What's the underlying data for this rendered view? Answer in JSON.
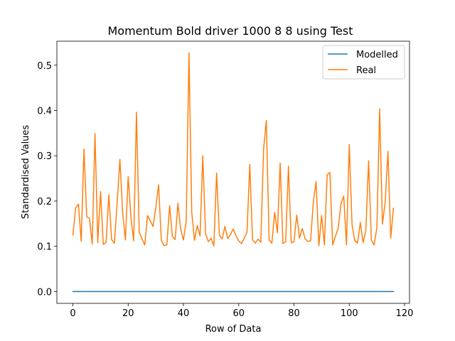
{
  "chart_data": {
    "type": "line",
    "title": "Momentum Bold driver 1000 8 8 using Test",
    "xlabel": "Row of Data",
    "ylabel": "Standardised Values",
    "xlim": [
      -5.8,
      121.8
    ],
    "ylim": [
      -0.026,
      0.553
    ],
    "xticks": [
      0,
      20,
      40,
      60,
      80,
      100,
      120
    ],
    "yticks": [
      0.0,
      0.1,
      0.2,
      0.3,
      0.4,
      0.5
    ],
    "xtick_labels": [
      "0",
      "20",
      "40",
      "60",
      "80",
      "100",
      "120"
    ],
    "ytick_labels": [
      "0.0",
      "0.1",
      "0.2",
      "0.3",
      "0.4",
      "0.5"
    ],
    "legend": {
      "position": "top-right"
    },
    "grid": false,
    "series": [
      {
        "name": "Modelled",
        "color": "#1f77b4",
        "x": [
          0,
          116
        ],
        "values": [
          0.0,
          0.0
        ]
      },
      {
        "name": "Real",
        "color": "#ff7f0e",
        "x": [
          0,
          1,
          2,
          3,
          4,
          5,
          6,
          7,
          8,
          9,
          10,
          11,
          12,
          13,
          14,
          15,
          16,
          17,
          18,
          19,
          20,
          21,
          22,
          23,
          24,
          25,
          26,
          27,
          28,
          29,
          30,
          31,
          32,
          33,
          34,
          35,
          36,
          37,
          38,
          39,
          40,
          41,
          42,
          43,
          44,
          45,
          46,
          47,
          48,
          49,
          50,
          51,
          52,
          53,
          54,
          55,
          56,
          57,
          58,
          59,
          60,
          61,
          62,
          63,
          64,
          65,
          66,
          67,
          68,
          69,
          70,
          71,
          72,
          73,
          74,
          75,
          76,
          77,
          78,
          79,
          80,
          81,
          82,
          83,
          84,
          85,
          86,
          87,
          88,
          89,
          90,
          91,
          92,
          93,
          94,
          95,
          96,
          97,
          98,
          99,
          100,
          101,
          102,
          103,
          104,
          105,
          106,
          107,
          108,
          109,
          110,
          111,
          112,
          113,
          114,
          115,
          116
        ],
        "values": [
          0.125,
          0.185,
          0.193,
          0.111,
          0.315,
          0.165,
          0.162,
          0.105,
          0.349,
          0.108,
          0.221,
          0.104,
          0.108,
          0.214,
          0.115,
          0.107,
          0.195,
          0.292,
          0.175,
          0.114,
          0.254,
          0.163,
          0.112,
          0.396,
          0.131,
          0.117,
          0.103,
          0.168,
          0.156,
          0.144,
          0.186,
          0.236,
          0.113,
          0.101,
          0.104,
          0.19,
          0.122,
          0.115,
          0.195,
          0.138,
          0.114,
          0.155,
          0.527,
          0.175,
          0.113,
          0.146,
          0.123,
          0.3,
          0.128,
          0.11,
          0.118,
          0.101,
          0.262,
          0.125,
          0.116,
          0.144,
          0.117,
          0.126,
          0.138,
          0.123,
          0.112,
          0.106,
          0.118,
          0.131,
          0.281,
          0.114,
          0.107,
          0.116,
          0.109,
          0.315,
          0.378,
          0.114,
          0.107,
          0.175,
          0.13,
          0.284,
          0.106,
          0.11,
          0.277,
          0.108,
          0.11,
          0.169,
          0.118,
          0.139,
          0.117,
          0.111,
          0.112,
          0.198,
          0.243,
          0.101,
          0.168,
          0.103,
          0.258,
          0.263,
          0.103,
          0.122,
          0.14,
          0.194,
          0.211,
          0.103,
          0.325,
          0.148,
          0.112,
          0.107,
          0.153,
          0.108,
          0.135,
          0.289,
          0.113,
          0.103,
          0.141,
          0.404,
          0.149,
          0.197,
          0.31,
          0.118,
          0.184
        ]
      }
    ]
  }
}
